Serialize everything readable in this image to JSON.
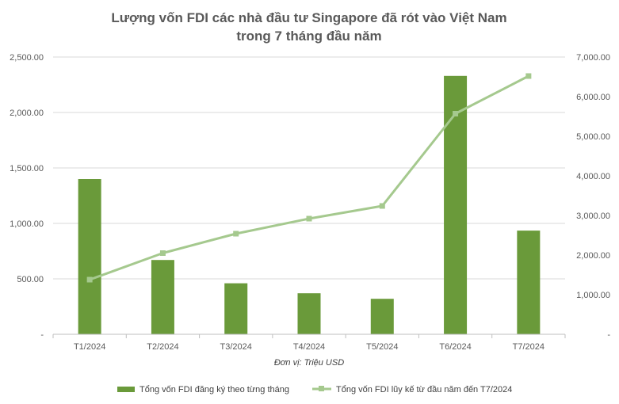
{
  "chart_data": {
    "type": "bar",
    "title_line1": "Lượng vốn FDI các nhà đầu tư Singapore đã rót vào Việt Nam",
    "title_line2": "trong 7 tháng đầu năm",
    "categories": [
      "T1/2024",
      "T2/2024",
      "T3/2024",
      "T4/2024",
      "T5/2024",
      "T6/2024",
      "T7/2024"
    ],
    "xlabel": "Đơn vị: Triệu USD",
    "series": [
      {
        "name": "Tổng vốn FDI đăng ký theo từng tháng",
        "type": "bar",
        "axis": "left",
        "color": "#6a9a3a",
        "values": [
          1400,
          670,
          460,
          370,
          320,
          2330,
          935
        ]
      },
      {
        "name": "Tổng vốn FDI lũy kế từ đầu năm đến T7/2024",
        "type": "line",
        "axis": "right",
        "color": "#a5c98e",
        "values": [
          1380,
          2050,
          2540,
          2920,
          3240,
          5570,
          6520
        ]
      }
    ],
    "y_left": {
      "range": [
        0,
        2500
      ],
      "ticks": [
        0,
        500,
        1000,
        1500,
        2000,
        2500
      ],
      "tick_labels": [
        "-",
        "500.00",
        "1,000.00",
        "1,500.00",
        "2,000.00",
        "2,500.00"
      ]
    },
    "y_right": {
      "range": [
        0,
        7000
      ],
      "ticks": [
        0,
        1000,
        2000,
        3000,
        4000,
        5000,
        6000,
        7000
      ],
      "tick_labels": [
        "-",
        "1,000.00",
        "2,000.00",
        "3,000.00",
        "4,000.00",
        "5,000.00",
        "6,000.00",
        "7,000.00"
      ]
    },
    "grid": true,
    "legend_position": "bottom"
  }
}
